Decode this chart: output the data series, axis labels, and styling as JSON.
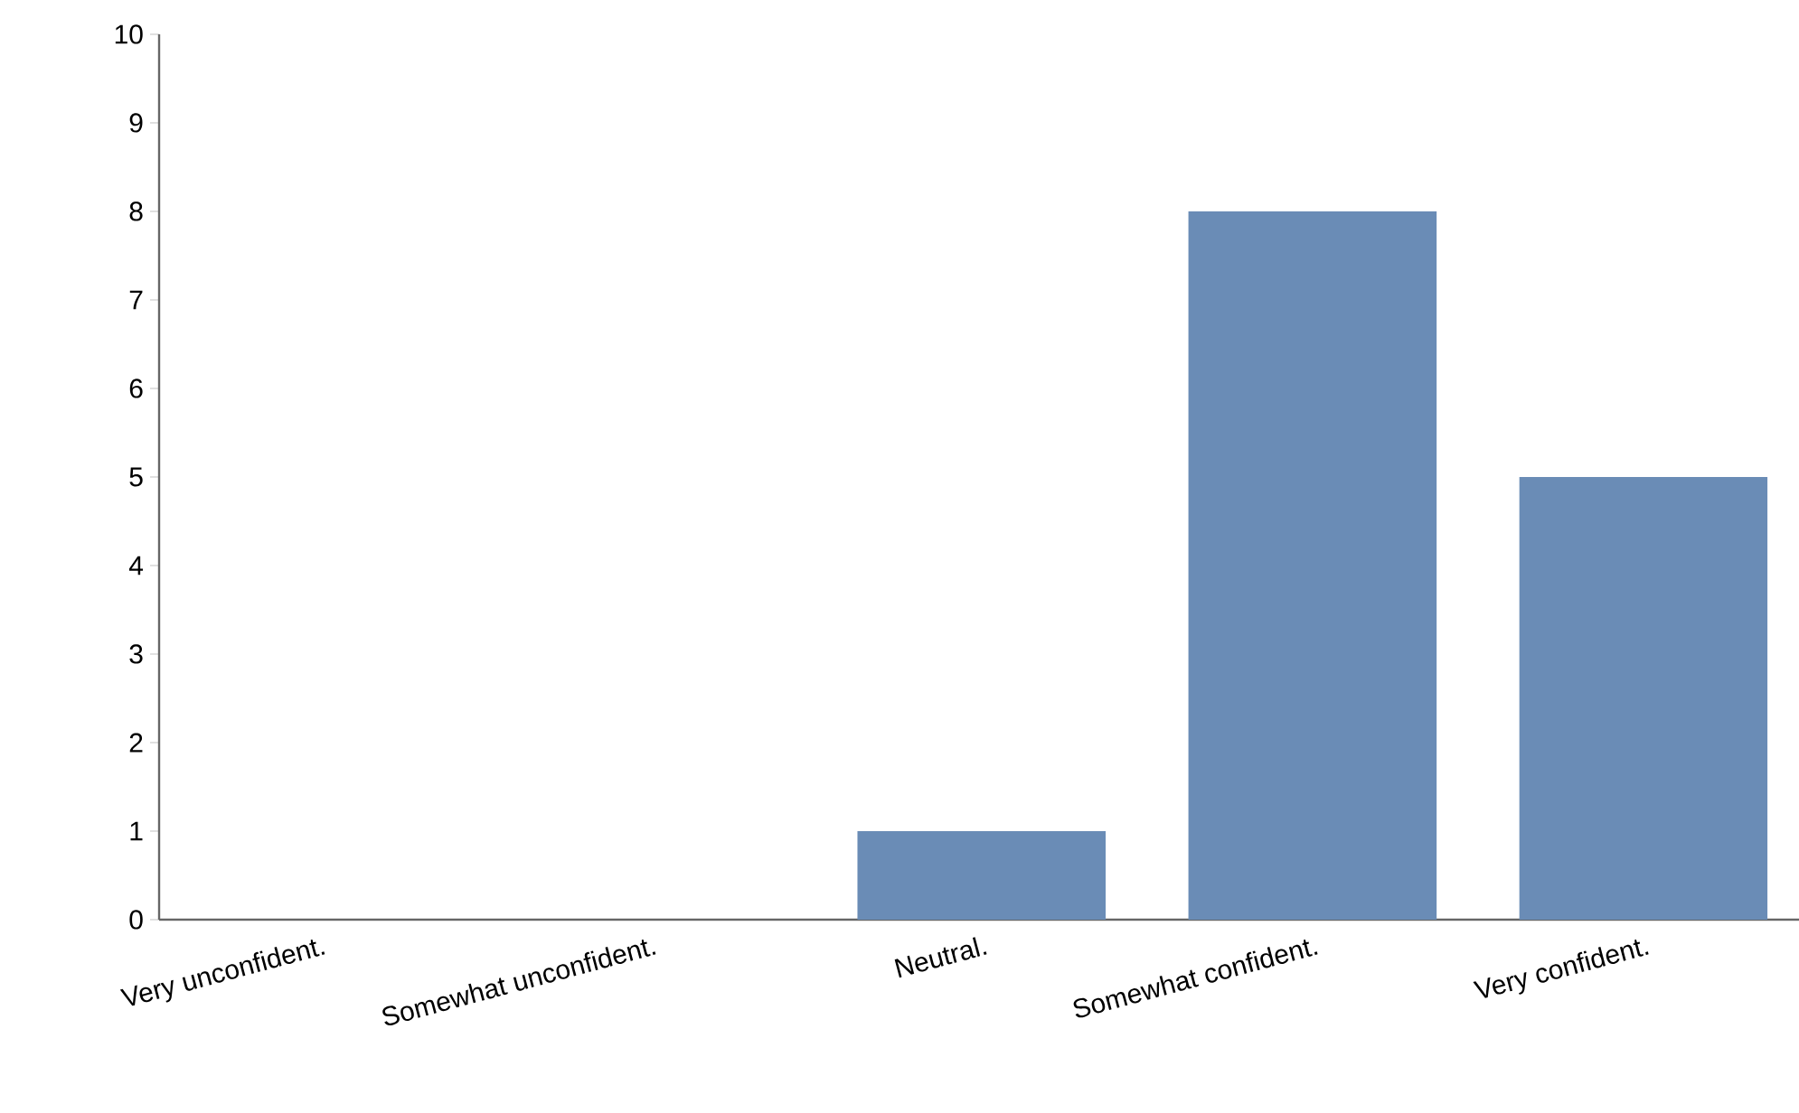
{
  "chart_data": {
    "type": "bar",
    "categories": [
      "Very unconfident.",
      "Somewhat unconfident.",
      "Neutral.",
      "Somewhat confident.",
      "Very confident."
    ],
    "values": [
      0,
      0,
      1,
      8,
      5
    ],
    "color": "#6a8cb6",
    "ylim": [
      0,
      10
    ],
    "yticks": [
      0,
      1,
      2,
      3,
      4,
      5,
      6,
      7,
      8,
      9,
      10
    ],
    "grid": false
  }
}
